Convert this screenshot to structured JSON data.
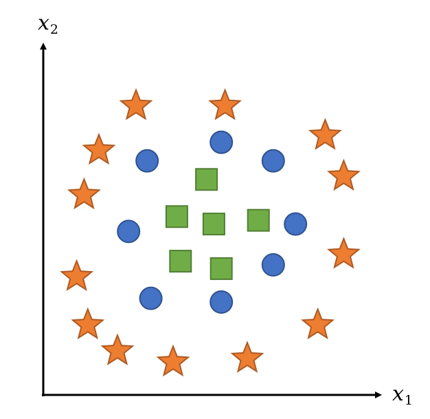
{
  "axes": {
    "x_label_base": "x",
    "x_label_sub": "1",
    "y_label_base": "x",
    "y_label_sub": "2",
    "axis_color": "#000000"
  },
  "classes": [
    {
      "name": "",
      "marker": "star",
      "fill": "#ED7D31",
      "stroke": "#AE5A21",
      "points": [
        [
          2.5,
          7.8
        ],
        [
          4.9,
          7.8
        ],
        [
          7.6,
          7.0
        ],
        [
          1.5,
          6.6
        ],
        [
          8.1,
          5.9
        ],
        [
          1.1,
          5.4
        ],
        [
          8.1,
          3.8
        ],
        [
          0.9,
          3.2
        ],
        [
          1.2,
          1.9
        ],
        [
          7.4,
          1.9
        ],
        [
          2.0,
          1.2
        ],
        [
          3.5,
          0.9
        ],
        [
          5.5,
          1.0
        ]
      ]
    },
    {
      "name": "",
      "marker": "circle",
      "fill": "#4472C4",
      "stroke": "#2F528F",
      "points": [
        [
          4.8,
          6.8
        ],
        [
          2.8,
          6.3
        ],
        [
          6.2,
          6.3
        ],
        [
          2.3,
          4.4
        ],
        [
          6.8,
          4.6
        ],
        [
          6.2,
          3.5
        ],
        [
          2.9,
          2.6
        ],
        [
          4.8,
          2.5
        ]
      ]
    },
    {
      "name": "",
      "marker": "square",
      "fill": "#70AD47",
      "stroke": "#507E32",
      "points": [
        [
          4.4,
          5.8
        ],
        [
          3.6,
          4.8
        ],
        [
          4.6,
          4.6
        ],
        [
          5.8,
          4.7
        ],
        [
          3.7,
          3.6
        ],
        [
          4.8,
          3.4
        ]
      ]
    }
  ]
}
